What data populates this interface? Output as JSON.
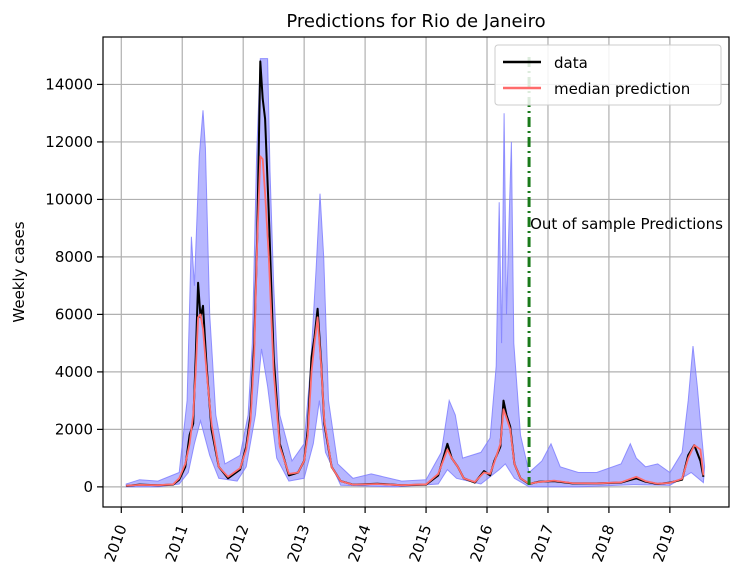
{
  "chart_data": {
    "type": "line",
    "title": "Predictions for Rio de Janeiro",
    "xlabel": "",
    "ylabel": "Weekly cases",
    "xlim": [
      2009.7,
      2019.97
    ],
    "ylim": [
      -700,
      15650
    ],
    "yticks": [
      0,
      2000,
      4000,
      6000,
      8000,
      10000,
      12000,
      14000
    ],
    "xticks": [
      "2010",
      "2011",
      "2012",
      "2013",
      "2014",
      "2015",
      "2016",
      "2017",
      "2018",
      "2019"
    ],
    "grid": true,
    "legend_position": "top-right",
    "colors": {
      "data": "#000000",
      "median": "#ff6b6b",
      "band": "#7b7bff",
      "divider": "#1a7a1a",
      "grid": "#b0b0b0"
    },
    "annotation": {
      "text": "Out of sample Predictions",
      "x": 2016.69
    },
    "series": [
      {
        "name": "data",
        "points": [
          [
            2010.08,
            30
          ],
          [
            2010.3,
            80
          ],
          [
            2010.6,
            60
          ],
          [
            2010.85,
            80
          ],
          [
            2010.95,
            250
          ],
          [
            2011.05,
            700
          ],
          [
            2011.12,
            1800
          ],
          [
            2011.18,
            2200
          ],
          [
            2011.22,
            4500
          ],
          [
            2011.26,
            7100
          ],
          [
            2011.3,
            5900
          ],
          [
            2011.34,
            6300
          ],
          [
            2011.4,
            4200
          ],
          [
            2011.48,
            2000
          ],
          [
            2011.6,
            700
          ],
          [
            2011.75,
            300
          ],
          [
            2011.95,
            600
          ],
          [
            2012.05,
            1400
          ],
          [
            2012.12,
            2500
          ],
          [
            2012.18,
            5000
          ],
          [
            2012.23,
            8700
          ],
          [
            2012.28,
            14800
          ],
          [
            2012.32,
            13500
          ],
          [
            2012.36,
            12800
          ],
          [
            2012.42,
            9500
          ],
          [
            2012.5,
            4500
          ],
          [
            2012.6,
            1500
          ],
          [
            2012.75,
            400
          ],
          [
            2012.9,
            500
          ],
          [
            2013.0,
            900
          ],
          [
            2013.06,
            2000
          ],
          [
            2013.12,
            4500
          ],
          [
            2013.17,
            5200
          ],
          [
            2013.22,
            6200
          ],
          [
            2013.28,
            4300
          ],
          [
            2013.33,
            2200
          ],
          [
            2013.45,
            700
          ],
          [
            2013.6,
            200
          ],
          [
            2013.8,
            80
          ],
          [
            2014.2,
            110
          ],
          [
            2014.6,
            60
          ],
          [
            2015.0,
            80
          ],
          [
            2015.2,
            400
          ],
          [
            2015.35,
            1500
          ],
          [
            2015.42,
            1000
          ],
          [
            2015.52,
            700
          ],
          [
            2015.62,
            300
          ],
          [
            2015.8,
            150
          ],
          [
            2015.95,
            550
          ],
          [
            2016.05,
            400
          ],
          [
            2016.12,
            900
          ],
          [
            2016.22,
            1400
          ],
          [
            2016.27,
            3000
          ],
          [
            2016.32,
            2500
          ],
          [
            2016.38,
            2100
          ],
          [
            2016.45,
            800
          ],
          [
            2016.55,
            300
          ],
          [
            2016.69,
            100
          ],
          [
            2016.85,
            180
          ],
          [
            2017.1,
            200
          ],
          [
            2017.4,
            120
          ],
          [
            2017.8,
            120
          ],
          [
            2018.2,
            150
          ],
          [
            2018.45,
            300
          ],
          [
            2018.6,
            180
          ],
          [
            2018.8,
            100
          ],
          [
            2019.0,
            150
          ],
          [
            2019.2,
            250
          ],
          [
            2019.3,
            1100
          ],
          [
            2019.4,
            1450
          ],
          [
            2019.5,
            900
          ],
          [
            2019.55,
            350
          ]
        ]
      },
      {
        "name": "median prediction",
        "points": [
          [
            2010.08,
            40
          ],
          [
            2010.3,
            70
          ],
          [
            2010.6,
            60
          ],
          [
            2010.85,
            90
          ],
          [
            2010.95,
            300
          ],
          [
            2011.05,
            800
          ],
          [
            2011.12,
            1500
          ],
          [
            2011.18,
            2500
          ],
          [
            2011.22,
            4000
          ],
          [
            2011.26,
            5900
          ],
          [
            2011.3,
            6000
          ],
          [
            2011.34,
            5500
          ],
          [
            2011.4,
            4000
          ],
          [
            2011.48,
            2200
          ],
          [
            2011.6,
            700
          ],
          [
            2011.75,
            350
          ],
          [
            2011.95,
            650
          ],
          [
            2012.05,
            1300
          ],
          [
            2012.12,
            2300
          ],
          [
            2012.18,
            4600
          ],
          [
            2012.23,
            8500
          ],
          [
            2012.28,
            11500
          ],
          [
            2012.32,
            11400
          ],
          [
            2012.36,
            10200
          ],
          [
            2012.42,
            8000
          ],
          [
            2012.5,
            4000
          ],
          [
            2012.6,
            1400
          ],
          [
            2012.75,
            450
          ],
          [
            2012.9,
            500
          ],
          [
            2013.0,
            900
          ],
          [
            2013.06,
            1800
          ],
          [
            2013.12,
            4000
          ],
          [
            2013.17,
            5000
          ],
          [
            2013.22,
            5900
          ],
          [
            2013.28,
            4200
          ],
          [
            2013.33,
            2300
          ],
          [
            2013.45,
            700
          ],
          [
            2013.6,
            200
          ],
          [
            2013.8,
            80
          ],
          [
            2014.2,
            100
          ],
          [
            2014.6,
            60
          ],
          [
            2015.0,
            90
          ],
          [
            2015.2,
            450
          ],
          [
            2015.35,
            1300
          ],
          [
            2015.42,
            1000
          ],
          [
            2015.52,
            700
          ],
          [
            2015.62,
            300
          ],
          [
            2015.8,
            170
          ],
          [
            2015.95,
            500
          ],
          [
            2016.05,
            450
          ],
          [
            2016.12,
            850
          ],
          [
            2016.22,
            1500
          ],
          [
            2016.27,
            2700
          ],
          [
            2016.32,
            2400
          ],
          [
            2016.38,
            2000
          ],
          [
            2016.45,
            800
          ],
          [
            2016.55,
            300
          ],
          [
            2016.69,
            110
          ],
          [
            2016.85,
            170
          ],
          [
            2017.1,
            220
          ],
          [
            2017.4,
            130
          ],
          [
            2017.8,
            120
          ],
          [
            2018.2,
            160
          ],
          [
            2018.45,
            350
          ],
          [
            2018.6,
            200
          ],
          [
            2018.8,
            110
          ],
          [
            2019.0,
            140
          ],
          [
            2019.2,
            280
          ],
          [
            2019.3,
            1000
          ],
          [
            2019.4,
            1450
          ],
          [
            2019.5,
            1300
          ],
          [
            2019.55,
            400
          ]
        ]
      }
    ],
    "prediction_band": {
      "lower": [
        [
          2010.08,
          0
        ],
        [
          2010.6,
          0
        ],
        [
          2010.95,
          100
        ],
        [
          2011.1,
          500
        ],
        [
          2011.2,
          1500
        ],
        [
          2011.3,
          2300
        ],
        [
          2011.45,
          1100
        ],
        [
          2011.6,
          300
        ],
        [
          2011.9,
          200
        ],
        [
          2012.05,
          700
        ],
        [
          2012.2,
          2500
        ],
        [
          2012.3,
          4800
        ],
        [
          2012.4,
          3500
        ],
        [
          2012.55,
          1000
        ],
        [
          2012.75,
          200
        ],
        [
          2013.0,
          300
        ],
        [
          2013.15,
          1500
        ],
        [
          2013.25,
          3000
        ],
        [
          2013.35,
          1200
        ],
        [
          2013.6,
          60
        ],
        [
          2014.5,
          0
        ],
        [
          2015.2,
          100
        ],
        [
          2015.35,
          600
        ],
        [
          2015.5,
          300
        ],
        [
          2015.9,
          100
        ],
        [
          2016.2,
          600
        ],
        [
          2016.3,
          800
        ],
        [
          2016.45,
          300
        ],
        [
          2016.69,
          0
        ],
        [
          2017.5,
          0
        ],
        [
          2018.4,
          80
        ],
        [
          2019.0,
          50
        ],
        [
          2019.35,
          500
        ],
        [
          2019.55,
          150
        ]
      ],
      "upper": [
        [
          2010.08,
          100
        ],
        [
          2010.3,
          250
        ],
        [
          2010.6,
          200
        ],
        [
          2010.95,
          500
        ],
        [
          2011.08,
          3000
        ],
        [
          2011.15,
          8700
        ],
        [
          2011.2,
          7000
        ],
        [
          2011.28,
          11500
        ],
        [
          2011.34,
          13100
        ],
        [
          2011.38,
          11800
        ],
        [
          2011.45,
          6000
        ],
        [
          2011.55,
          2500
        ],
        [
          2011.7,
          800
        ],
        [
          2011.95,
          1100
        ],
        [
          2012.08,
          2500
        ],
        [
          2012.15,
          5000
        ],
        [
          2012.22,
          11500
        ],
        [
          2012.28,
          14900
        ],
        [
          2012.4,
          14900
        ],
        [
          2012.44,
          11000
        ],
        [
          2012.5,
          7000
        ],
        [
          2012.6,
          2500
        ],
        [
          2012.8,
          900
        ],
        [
          2013.0,
          1500
        ],
        [
          2013.1,
          4000
        ],
        [
          2013.2,
          7700
        ],
        [
          2013.26,
          10200
        ],
        [
          2013.32,
          8000
        ],
        [
          2013.4,
          3000
        ],
        [
          2013.55,
          800
        ],
        [
          2013.8,
          300
        ],
        [
          2014.1,
          450
        ],
        [
          2014.6,
          200
        ],
        [
          2015.0,
          250
        ],
        [
          2015.25,
          1200
        ],
        [
          2015.38,
          3000
        ],
        [
          2015.48,
          2500
        ],
        [
          2015.6,
          1000
        ],
        [
          2015.9,
          1200
        ],
        [
          2016.05,
          1700
        ],
        [
          2016.15,
          4200
        ],
        [
          2016.2,
          9900
        ],
        [
          2016.24,
          5000
        ],
        [
          2016.28,
          13000
        ],
        [
          2016.32,
          6000
        ],
        [
          2016.36,
          9200
        ],
        [
          2016.4,
          12000
        ],
        [
          2016.44,
          5000
        ],
        [
          2016.55,
          1800
        ],
        [
          2016.69,
          500
        ],
        [
          2016.9,
          900
        ],
        [
          2017.05,
          1500
        ],
        [
          2017.2,
          700
        ],
        [
          2017.5,
          500
        ],
        [
          2017.8,
          500
        ],
        [
          2018.2,
          800
        ],
        [
          2018.35,
          1500
        ],
        [
          2018.45,
          1000
        ],
        [
          2018.6,
          700
        ],
        [
          2018.8,
          800
        ],
        [
          2019.0,
          500
        ],
        [
          2019.2,
          1200
        ],
        [
          2019.3,
          3000
        ],
        [
          2019.38,
          4900
        ],
        [
          2019.45,
          3500
        ],
        [
          2019.52,
          1800
        ],
        [
          2019.57,
          700
        ]
      ]
    }
  }
}
